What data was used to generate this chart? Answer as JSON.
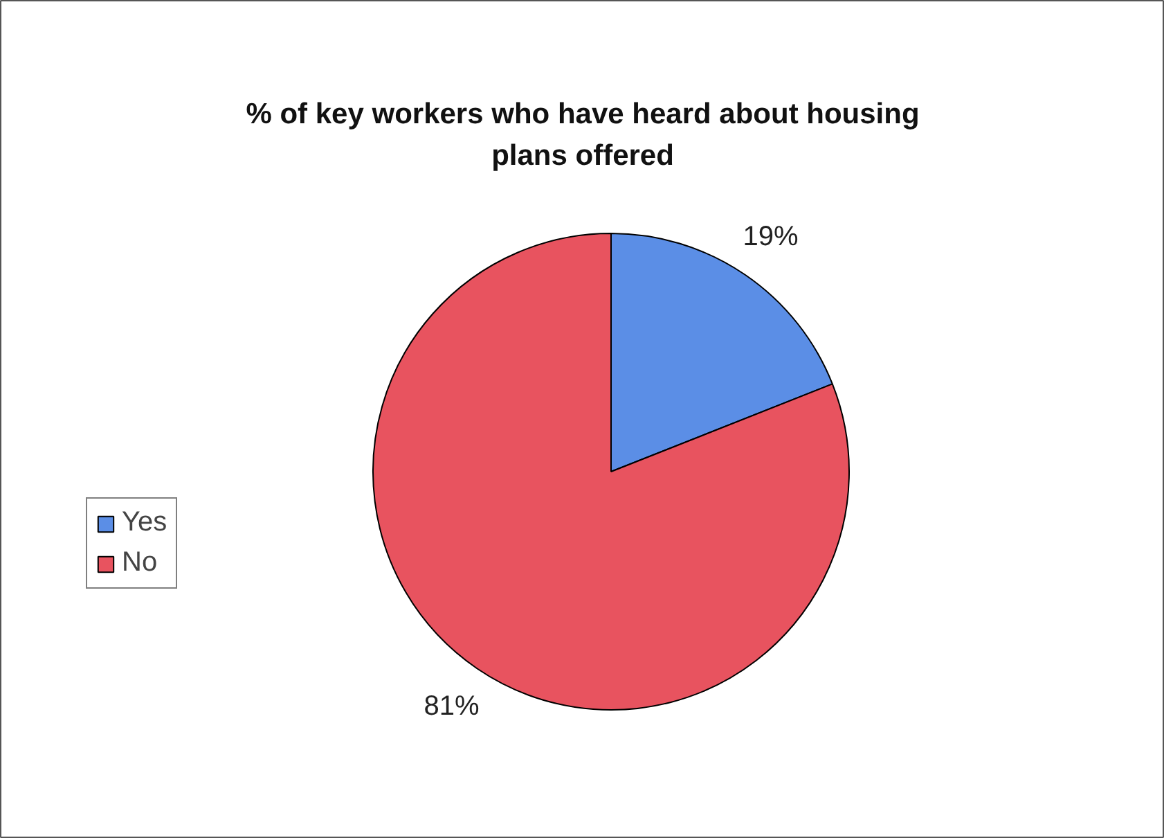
{
  "chart_data": {
    "type": "pie",
    "title": "% of key workers who have heard about housing plans offered",
    "categories": [
      "Yes",
      "No"
    ],
    "values": [
      19,
      81
    ],
    "colors": [
      "#5b8ee6",
      "#e8535f"
    ],
    "value_labels": [
      "19%",
      "81%"
    ],
    "legend": "left"
  }
}
